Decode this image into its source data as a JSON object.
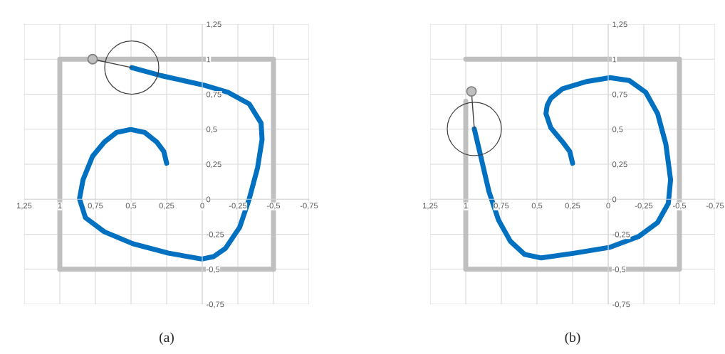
{
  "chart_data": [
    {
      "type": "line",
      "title": "(a)",
      "xlim": [
        1.25,
        -0.75
      ],
      "ylim": [
        -0.75,
        1.25
      ],
      "xticks": [
        {
          "value": 1.25,
          "label": "1,25"
        },
        1,
        {
          "value": 0.75,
          "label": "0,75"
        },
        {
          "value": 0.5,
          "label": "0,5"
        },
        {
          "value": 0.25,
          "label": "0,25"
        },
        0,
        {
          "value": -0.25,
          "label": "-0,25"
        },
        {
          "value": -0.5,
          "label": "-0,5"
        },
        {
          "value": -0.75,
          "label": "-0,75"
        }
      ],
      "yticks": [
        {
          "value": -0.75,
          "label": "-0,75"
        },
        {
          "value": -0.5,
          "label": "-0,5"
        },
        {
          "value": -0.25,
          "label": "-0,25"
        },
        0,
        {
          "value": 0.25,
          "label": "0,25"
        },
        {
          "value": 0.5,
          "label": "0,5"
        },
        {
          "value": 0.75,
          "label": "0,75"
        },
        1,
        {
          "value": 1.25,
          "label": "1,25"
        }
      ],
      "grid": true,
      "series": [
        {
          "color": "#bfbfbf",
          "x": [
            1,
            1,
            -0.5,
            -0.5
          ],
          "values": [
            -0.5,
            1,
            1,
            -0.5
          ]
        },
        {
          "color": "#0070c0",
          "x": [
            0.495,
            0.287,
            -0.013,
            -0.18,
            -0.33,
            -0.413,
            -0.42,
            -0.388,
            -0.33,
            -0.263,
            -0.163,
            -0.08,
            0.003,
            0.237,
            0.487,
            0.687,
            0.82,
            0.862,
            0.837,
            0.77,
            0.687,
            0.603,
            0.503,
            0.403,
            0.32,
            0.27,
            0.25
          ],
          "values": [
            0.94,
            0.882,
            0.814,
            0.764,
            0.68,
            0.544,
            0.426,
            0.223,
            0.003,
            -0.2,
            -0.351,
            -0.41,
            -0.427,
            -0.385,
            -0.318,
            -0.233,
            -0.132,
            0.003,
            0.139,
            0.307,
            0.409,
            0.476,
            0.498,
            0.476,
            0.409,
            0.341,
            0.257
          ]
        },
        {
          "color": "#404040",
          "x": [
            0.495,
            0.77
          ],
          "values": [
            0.94,
            1.0
          ]
        },
        {
          "type": "scatter",
          "color": "#bfbfbf",
          "x": [
            0.77
          ],
          "values": [
            1.0
          ]
        },
        {
          "color": "#bfbfbf",
          "x": [
            -0.5,
            1
          ],
          "values": [
            -0.5,
            -0.5
          ]
        }
      ]
    },
    {
      "type": "line",
      "title": "(b)",
      "xlim": [
        1.25,
        -0.75
      ],
      "ylim": [
        -0.75,
        1.25
      ],
      "xticks": [
        {
          "value": 1.25,
          "label": "1,25"
        },
        1,
        {
          "value": 0.75,
          "label": "0,75"
        },
        {
          "value": 0.5,
          "label": "0,5"
        },
        {
          "value": 0.25,
          "label": "0,25"
        },
        0,
        {
          "value": -0.25,
          "label": "-0,25"
        },
        {
          "value": -0.5,
          "label": "-0,5"
        },
        {
          "value": -0.75,
          "label": "-0,75"
        }
      ],
      "yticks": [
        {
          "value": -0.75,
          "label": "-0,75"
        },
        {
          "value": -0.5,
          "label": "-0,5"
        },
        {
          "value": -0.25,
          "label": "-0,25"
        },
        0,
        {
          "value": 0.25,
          "label": "0,25"
        },
        {
          "value": 0.5,
          "label": "0,5"
        },
        {
          "value": 0.75,
          "label": "0,75"
        },
        1,
        {
          "value": 1.25,
          "label": "1,25"
        }
      ],
      "grid": true,
      "series": [
        {
          "color": "#bfbfbf",
          "x": [
            1,
            1,
            -0.5,
            -0.5,
            1
          ],
          "values": [
            0.7,
            -0.5,
            -0.5,
            1,
            1
          ]
        },
        {
          "color": "#0070c0",
          "x": [
            0.94,
            0.895,
            0.837,
            0.77,
            0.687,
            0.587,
            0.47,
            0.237,
            -0.013,
            -0.213,
            -0.347,
            -0.422,
            -0.438,
            -0.405,
            -0.347,
            -0.263,
            -0.147,
            -0.013,
            0.153,
            0.32,
            0.403,
            0.428,
            0.437,
            0.403,
            0.32,
            0.27,
            0.25
          ],
          "values": [
            0.502,
            0.307,
            0.054,
            -0.149,
            -0.3,
            -0.394,
            -0.419,
            -0.385,
            -0.343,
            -0.267,
            -0.166,
            -0.03,
            0.139,
            0.392,
            0.611,
            0.764,
            0.848,
            0.868,
            0.84,
            0.789,
            0.721,
            0.671,
            0.611,
            0.51,
            0.409,
            0.341,
            0.257
          ]
        },
        {
          "color": "#404040",
          "x": [
            0.94,
            0.96
          ],
          "values": [
            0.502,
            0.77
          ]
        },
        {
          "type": "scatter",
          "color": "#bfbfbf",
          "x": [
            0.96
          ],
          "values": [
            0.77
          ]
        }
      ]
    }
  ]
}
